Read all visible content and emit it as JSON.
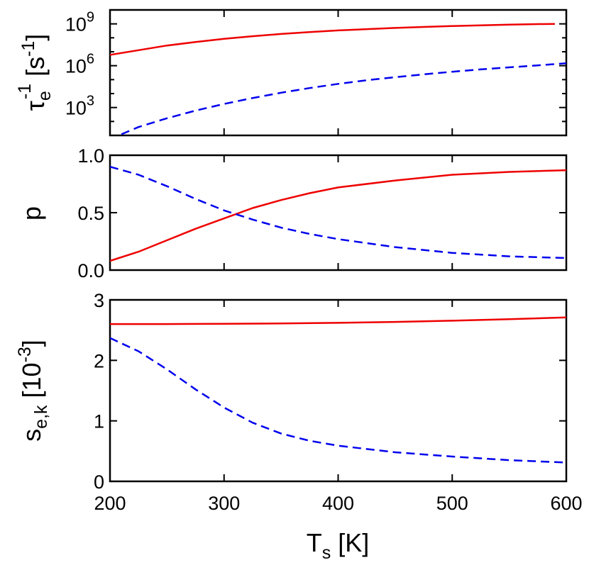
{
  "chart_data": [
    {
      "type": "line",
      "ylabel": "τe-1 [s-1]",
      "ylabel_parts": {
        "sym": "τ",
        "sub": "e",
        "sup": "-1",
        "open": " [s",
        "unit_sup": "-1",
        "close": "]"
      },
      "yscale": "log",
      "ylim": [
        10,
        10000000000
      ],
      "xlim": [
        200,
        600
      ],
      "yticks": [
        {
          "value": 1000,
          "base": "10",
          "exp": "3"
        },
        {
          "value": 1000000,
          "base": "10",
          "exp": "6"
        },
        {
          "value": 1000000000,
          "base": "10",
          "exp": "9"
        }
      ],
      "series": [
        {
          "color": "#ee0000",
          "dash": "solid",
          "x": [
            200,
            225,
            250,
            275,
            300,
            325,
            350,
            375,
            400,
            425,
            450,
            475,
            500,
            525,
            550,
            575,
            590
          ],
          "y": [
            6000000,
            13000000,
            28000000,
            50000000,
            85000000,
            130000000,
            190000000,
            260000000,
            340000000,
            420000000,
            510000000,
            600000000,
            700000000,
            790000000,
            880000000,
            960000000,
            1000000000
          ]
        },
        {
          "color": "#0000ee",
          "dash": "dashed",
          "x": [
            210,
            225,
            250,
            275,
            300,
            325,
            350,
            375,
            400,
            425,
            450,
            475,
            500,
            525,
            550,
            575,
            600
          ],
          "y": [
            12,
            40,
            170,
            600,
            1800,
            4800,
            11500,
            25000,
            50000,
            90000,
            150000,
            240000,
            370000,
            540000,
            760000,
            1050000,
            1500000
          ]
        }
      ]
    },
    {
      "type": "line",
      "ylabel": "p",
      "ylim": [
        0,
        1
      ],
      "xlim": [
        200,
        600
      ],
      "yticks": [
        {
          "value": 0,
          "label": "0.0"
        },
        {
          "value": 0.5,
          "label": "0.5"
        },
        {
          "value": 1,
          "label": "1.0"
        }
      ],
      "series": [
        {
          "color": "#ee0000",
          "dash": "solid",
          "x": [
            200,
            225,
            250,
            275,
            300,
            325,
            350,
            375,
            400,
            450,
            500,
            550,
            600
          ],
          "y": [
            0.08,
            0.16,
            0.26,
            0.36,
            0.45,
            0.54,
            0.61,
            0.67,
            0.72,
            0.78,
            0.83,
            0.855,
            0.87
          ]
        },
        {
          "color": "#0000ee",
          "dash": "dashed",
          "x": [
            200,
            225,
            250,
            275,
            300,
            325,
            350,
            375,
            400,
            450,
            500,
            550,
            600
          ],
          "y": [
            0.9,
            0.83,
            0.73,
            0.62,
            0.52,
            0.44,
            0.37,
            0.315,
            0.27,
            0.2,
            0.15,
            0.12,
            0.105
          ]
        }
      ]
    },
    {
      "type": "line",
      "ylabel": "se,k [10-3]",
      "ylabel_parts": {
        "sym": "s",
        "sub": "e,k",
        "open": " [10",
        "unit_sup": "-3",
        "close": "]"
      },
      "xlabel": "Ts [K]",
      "xlabel_parts": {
        "sym": "T",
        "sub": "s",
        "rest": " [K]"
      },
      "ylim": [
        0,
        3
      ],
      "xlim": [
        200,
        600
      ],
      "yticks": [
        {
          "value": 0,
          "label": "0"
        },
        {
          "value": 1,
          "label": "1"
        },
        {
          "value": 2,
          "label": "2"
        },
        {
          "value": 3,
          "label": "3"
        }
      ],
      "xticks": [
        {
          "value": 200,
          "label": "200"
        },
        {
          "value": 300,
          "label": "300"
        },
        {
          "value": 400,
          "label": "400"
        },
        {
          "value": 500,
          "label": "500"
        },
        {
          "value": 600,
          "label": "600"
        }
      ],
      "series": [
        {
          "color": "#ee0000",
          "dash": "solid",
          "x": [
            200,
            250,
            300,
            350,
            400,
            450,
            500,
            550,
            600
          ],
          "y": [
            2.6,
            2.6,
            2.605,
            2.61,
            2.62,
            2.635,
            2.655,
            2.68,
            2.71
          ]
        },
        {
          "color": "#0000ee",
          "dash": "dashed",
          "x": [
            200,
            225,
            250,
            275,
            300,
            325,
            350,
            375,
            400,
            450,
            500,
            550,
            600
          ],
          "y": [
            2.37,
            2.15,
            1.85,
            1.52,
            1.22,
            0.97,
            0.79,
            0.67,
            0.59,
            0.48,
            0.41,
            0.35,
            0.31
          ]
        }
      ]
    }
  ]
}
